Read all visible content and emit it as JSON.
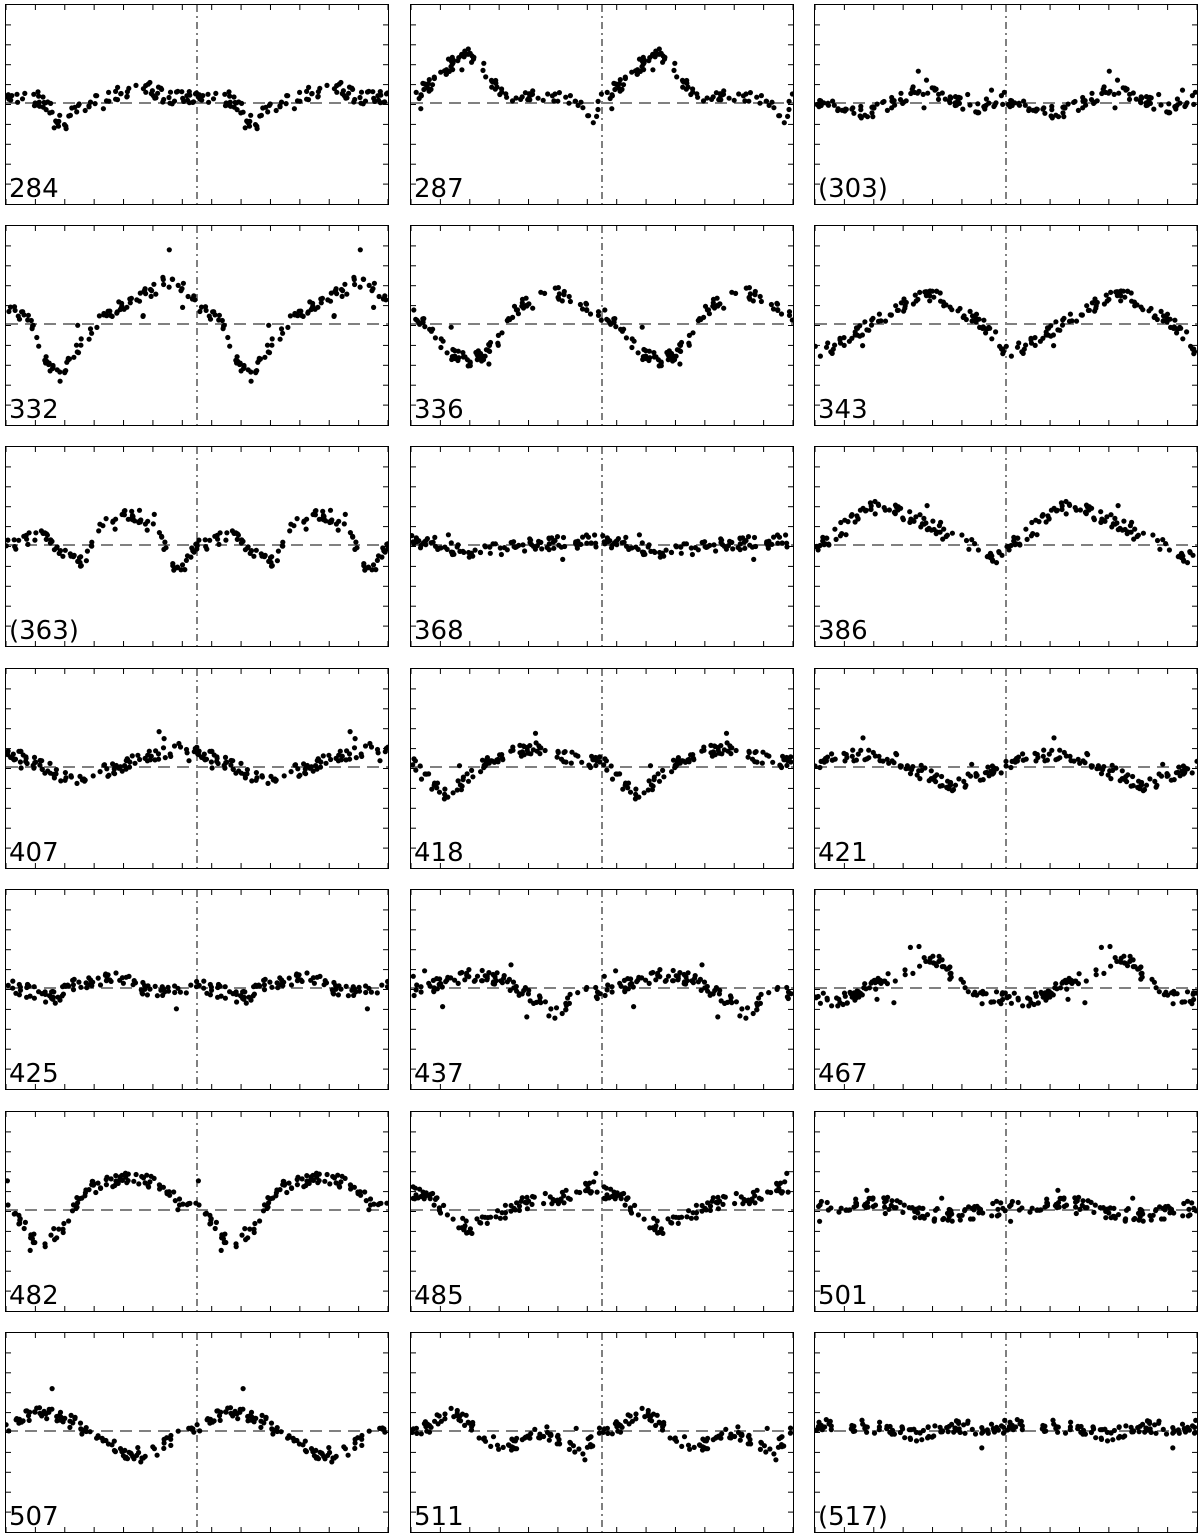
{
  "chart_data": {
    "type": "scatter",
    "layout": "grid 7 rows x 3 columns",
    "xlim": [
      0,
      2
    ],
    "reference_line_x": 1,
    "grid": false,
    "tick_marks": "inward, all four sides",
    "colors": {
      "points": "#000000",
      "reference_lines": "#808080",
      "frame": "#000000"
    },
    "panels": [
      {
        "label": "284",
        "shape": [
          [
            0,
            0.08
          ],
          [
            0.1,
            0.05
          ],
          [
            0.2,
            0.02
          ],
          [
            0.3,
            -0.25
          ],
          [
            0.35,
            -0.1
          ],
          [
            0.5,
            0.08
          ],
          [
            0.6,
            0.1
          ],
          [
            0.75,
            0.15
          ],
          [
            0.85,
            0.05
          ],
          [
            1.0,
            0.08
          ]
        ]
      },
      {
        "label": "287",
        "shape": [
          [
            0,
            0.05
          ],
          [
            0.1,
            0.2
          ],
          [
            0.2,
            0.4
          ],
          [
            0.3,
            0.5
          ],
          [
            0.35,
            0.45
          ],
          [
            0.45,
            0.15
          ],
          [
            0.55,
            0.05
          ],
          [
            0.7,
            0.1
          ],
          [
            0.85,
            0.05
          ],
          [
            0.95,
            -0.2
          ],
          [
            1.0,
            0.05
          ]
        ]
      },
      {
        "label": "(303)",
        "shape": [
          [
            0,
            0.05
          ],
          [
            0.15,
            -0.1
          ],
          [
            0.3,
            -0.08
          ],
          [
            0.45,
            0.05
          ],
          [
            0.55,
            0.15
          ],
          [
            0.7,
            0.05
          ],
          [
            0.85,
            -0.05
          ],
          [
            1.0,
            0.05
          ]
        ]
      },
      {
        "label": "332",
        "shape": [
          [
            0,
            0.2
          ],
          [
            0.12,
            0.05
          ],
          [
            0.22,
            -0.45
          ],
          [
            0.28,
            -0.55
          ],
          [
            0.35,
            -0.3
          ],
          [
            0.5,
            0.05
          ],
          [
            0.6,
            0.2
          ],
          [
            0.7,
            0.3
          ],
          [
            0.85,
            0.45
          ],
          [
            0.95,
            0.35
          ],
          [
            1.0,
            0.2
          ]
        ]
      },
      {
        "label": "336",
        "shape": [
          [
            0,
            0.1
          ],
          [
            0.1,
            -0.05
          ],
          [
            0.2,
            -0.3
          ],
          [
            0.32,
            -0.4
          ],
          [
            0.45,
            -0.2
          ],
          [
            0.55,
            0.15
          ],
          [
            0.68,
            0.4
          ],
          [
            0.8,
            0.3
          ],
          [
            0.9,
            0.2
          ],
          [
            1.0,
            0.1
          ]
        ]
      },
      {
        "label": "343",
        "shape": [
          [
            0,
            -0.3
          ],
          [
            0.1,
            -0.25
          ],
          [
            0.2,
            -0.1
          ],
          [
            0.35,
            0.05
          ],
          [
            0.5,
            0.25
          ],
          [
            0.62,
            0.3
          ],
          [
            0.72,
            0.2
          ],
          [
            0.85,
            0.05
          ],
          [
            0.95,
            -0.15
          ],
          [
            1.0,
            -0.3
          ]
        ]
      },
      {
        "label": "(363)",
        "shape": [
          [
            0,
            0
          ],
          [
            0.1,
            0.05
          ],
          [
            0.2,
            0.1
          ],
          [
            0.3,
            -0.1
          ],
          [
            0.4,
            -0.2
          ],
          [
            0.5,
            0.2
          ],
          [
            0.6,
            0.35
          ],
          [
            0.7,
            0.3
          ],
          [
            0.8,
            0.1
          ],
          [
            0.9,
            -0.3
          ],
          [
            1.0,
            0
          ]
        ]
      },
      {
        "label": "368",
        "shape": [
          [
            0,
            0.05
          ],
          [
            0.15,
            0.02
          ],
          [
            0.3,
            -0.1
          ],
          [
            0.45,
            -0.05
          ],
          [
            0.6,
            0.0
          ],
          [
            0.7,
            0.02
          ],
          [
            0.85,
            0.02
          ],
          [
            0.95,
            0.05
          ],
          [
            1.0,
            0.05
          ]
        ]
      },
      {
        "label": "386",
        "shape": [
          [
            0,
            -0.05
          ],
          [
            0.1,
            0.1
          ],
          [
            0.2,
            0.3
          ],
          [
            0.3,
            0.4
          ],
          [
            0.45,
            0.35
          ],
          [
            0.6,
            0.2
          ],
          [
            0.75,
            0.05
          ],
          [
            0.88,
            -0.05
          ],
          [
            0.95,
            -0.15
          ],
          [
            1.0,
            -0.05
          ]
        ]
      },
      {
        "label": "407",
        "shape": [
          [
            0,
            0.15
          ],
          [
            0.15,
            0.05
          ],
          [
            0.25,
            -0.05
          ],
          [
            0.35,
            -0.15
          ],
          [
            0.5,
            -0.05
          ],
          [
            0.65,
            0.05
          ],
          [
            0.8,
            0.15
          ],
          [
            0.9,
            0.2
          ],
          [
            1.0,
            0.15
          ]
        ]
      },
      {
        "label": "418",
        "shape": [
          [
            0,
            0.05
          ],
          [
            0.1,
            -0.15
          ],
          [
            0.18,
            -0.3
          ],
          [
            0.25,
            -0.2
          ],
          [
            0.38,
            0.05
          ],
          [
            0.5,
            0.15
          ],
          [
            0.62,
            0.2
          ],
          [
            0.75,
            0.15
          ],
          [
            0.9,
            0.05
          ],
          [
            1.0,
            0.05
          ]
        ]
      },
      {
        "label": "421",
        "shape": [
          [
            0,
            0
          ],
          [
            0.12,
            0.1
          ],
          [
            0.25,
            0.15
          ],
          [
            0.4,
            0.1
          ],
          [
            0.5,
            0.0
          ],
          [
            0.62,
            -0.1
          ],
          [
            0.72,
            -0.2
          ],
          [
            0.82,
            -0.12
          ],
          [
            0.92,
            -0.05
          ],
          [
            1.0,
            0
          ]
        ]
      },
      {
        "label": "425",
        "shape": [
          [
            0,
            0.02
          ],
          [
            0.15,
            -0.05
          ],
          [
            0.25,
            -0.1
          ],
          [
            0.38,
            0.05
          ],
          [
            0.5,
            0.1
          ],
          [
            0.62,
            0.12
          ],
          [
            0.72,
            0.0
          ],
          [
            0.85,
            -0.02
          ],
          [
            1.0,
            0.02
          ]
        ]
      },
      {
        "label": "437",
        "shape": [
          [
            0,
            -0.05
          ],
          [
            0.15,
            0.05
          ],
          [
            0.3,
            0.15
          ],
          [
            0.45,
            0.1
          ],
          [
            0.55,
            0.0
          ],
          [
            0.68,
            -0.15
          ],
          [
            0.75,
            -0.3
          ],
          [
            0.82,
            -0.15
          ],
          [
            0.9,
            -0.05
          ],
          [
            1.0,
            -0.05
          ]
        ]
      },
      {
        "label": "467",
        "shape": [
          [
            0,
            -0.1
          ],
          [
            0.1,
            -0.15
          ],
          [
            0.2,
            -0.08
          ],
          [
            0.32,
            0.05
          ],
          [
            0.45,
            0.15
          ],
          [
            0.55,
            0.25
          ],
          [
            0.65,
            0.3
          ],
          [
            0.75,
            0.05
          ],
          [
            0.85,
            -0.1
          ],
          [
            1.0,
            -0.1
          ]
        ]
      },
      {
        "label": "482",
        "shape": [
          [
            0,
            0.1
          ],
          [
            0.08,
            -0.15
          ],
          [
            0.18,
            -0.35
          ],
          [
            0.3,
            -0.2
          ],
          [
            0.4,
            0.2
          ],
          [
            0.55,
            0.3
          ],
          [
            0.65,
            0.35
          ],
          [
            0.75,
            0.3
          ],
          [
            0.85,
            0.2
          ],
          [
            0.95,
            0.0
          ],
          [
            1.0,
            0.1
          ]
        ]
      },
      {
        "label": "485",
        "shape": [
          [
            0,
            0.2
          ],
          [
            0.12,
            0.1
          ],
          [
            0.2,
            -0.05
          ],
          [
            0.3,
            -0.2
          ],
          [
            0.42,
            -0.1
          ],
          [
            0.55,
            0.05
          ],
          [
            0.65,
            0.1
          ],
          [
            0.75,
            0.12
          ],
          [
            0.85,
            0.15
          ],
          [
            0.95,
            0.25
          ],
          [
            1.0,
            0.2
          ]
        ]
      },
      {
        "label": "501",
        "shape": [
          [
            0,
            0.02
          ],
          [
            0.2,
            0.05
          ],
          [
            0.35,
            0.1
          ],
          [
            0.5,
            0.0
          ],
          [
            0.6,
            -0.05
          ],
          [
            0.72,
            -0.05
          ],
          [
            0.85,
            -0.02
          ],
          [
            1.0,
            0.02
          ]
        ]
      },
      {
        "label": "507",
        "shape": [
          [
            0,
            0.05
          ],
          [
            0.1,
            0.15
          ],
          [
            0.2,
            0.2
          ],
          [
            0.3,
            0.15
          ],
          [
            0.42,
            0.0
          ],
          [
            0.55,
            -0.15
          ],
          [
            0.65,
            -0.25
          ],
          [
            0.72,
            -0.3
          ],
          [
            0.85,
            -0.1
          ],
          [
            0.95,
            0.0
          ],
          [
            1.0,
            0.05
          ]
        ]
      },
      {
        "label": "511",
        "shape": [
          [
            0,
            0
          ],
          [
            0.1,
            0.05
          ],
          [
            0.2,
            0.2
          ],
          [
            0.3,
            0.1
          ],
          [
            0.4,
            -0.1
          ],
          [
            0.5,
            -0.15
          ],
          [
            0.6,
            -0.1
          ],
          [
            0.7,
            0.0
          ],
          [
            0.8,
            -0.12
          ],
          [
            0.9,
            -0.2
          ],
          [
            1.0,
            0
          ]
        ]
      },
      {
        "label": "(517)",
        "shape": [
          [
            0,
            0.05
          ],
          [
            0.12,
            0.08
          ],
          [
            0.25,
            0.05
          ],
          [
            0.4,
            0.02
          ],
          [
            0.5,
            -0.05
          ],
          [
            0.62,
            0.0
          ],
          [
            0.75,
            0.05
          ],
          [
            0.88,
            0.02
          ],
          [
            1.0,
            0.05
          ]
        ]
      }
    ]
  }
}
